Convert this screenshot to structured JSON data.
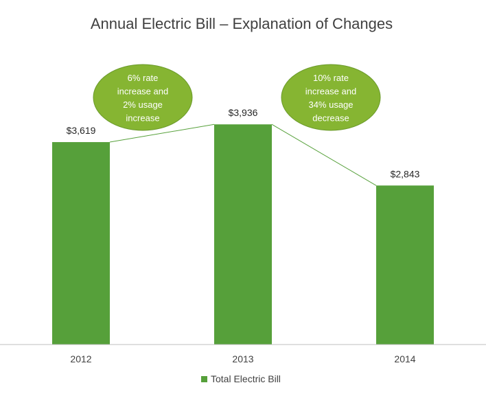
{
  "chart_data": {
    "type": "bar",
    "title": "Annual Electric Bill – Explanation of Changes",
    "xlabel": "",
    "ylabel": "",
    "categories": [
      "2012",
      "2013",
      "2014"
    ],
    "series": [
      {
        "name": "Total Electric Bill",
        "values": [
          3619,
          3936,
          2843
        ]
      }
    ],
    "data_labels": [
      "$3,619",
      "$3,936",
      "$2,843"
    ],
    "ylim": [
      0,
      4600
    ],
    "grid": false,
    "legend_position": "bottom",
    "connector_line": true,
    "annotations": [
      {
        "between": [
          "2012",
          "2013"
        ],
        "lines": [
          "6% rate",
          "increase and",
          "2% usage",
          "increase"
        ]
      },
      {
        "between": [
          "2013",
          "2014"
        ],
        "lines": [
          "10% rate",
          "increase and",
          "34% usage",
          "decrease"
        ]
      }
    ],
    "colors": {
      "bar": "#56A03A",
      "connector": "#56A03A",
      "annotation_fill": "#86B532",
      "annotation_stroke": "#6A9A2A",
      "axis": "#BFBFBF"
    }
  }
}
